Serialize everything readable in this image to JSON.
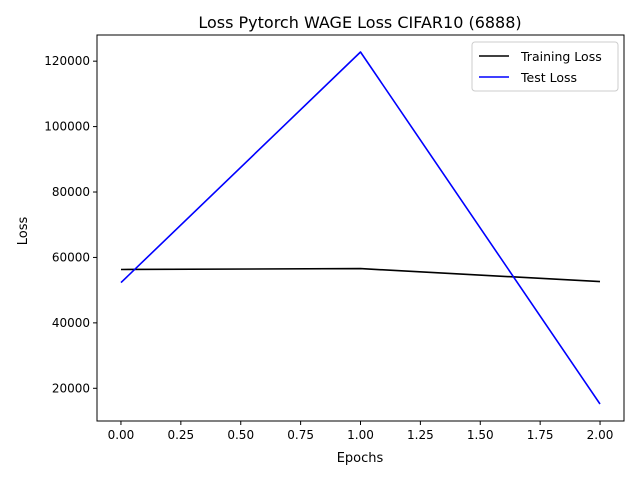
{
  "chart_data": {
    "type": "line",
    "title": "Loss Pytorch WAGE Loss CIFAR10 (6888)",
    "xlabel": "Epochs",
    "ylabel": "Loss",
    "xlim": [
      -0.1,
      2.1
    ],
    "ylim": [
      10000,
      128000
    ],
    "xticks": [
      0.0,
      0.25,
      0.5,
      0.75,
      1.0,
      1.25,
      1.5,
      1.75,
      2.0
    ],
    "xtick_labels": [
      "0.00",
      "0.25",
      "0.50",
      "0.75",
      "1.00",
      "1.25",
      "1.50",
      "1.75",
      "2.00"
    ],
    "yticks": [
      20000,
      40000,
      60000,
      80000,
      100000,
      120000
    ],
    "ytick_labels": [
      "20000",
      "40000",
      "60000",
      "80000",
      "100000",
      "120000"
    ],
    "grid": false,
    "legend_position": "top-right",
    "x": [
      0,
      1,
      2
    ],
    "series": [
      {
        "name": "Training Loss",
        "color": "#000000",
        "values": [
          56300,
          56600,
          52600
        ]
      },
      {
        "name": "Test Loss",
        "color": "#0000ff",
        "values": [
          52300,
          122800,
          15200
        ]
      }
    ]
  }
}
